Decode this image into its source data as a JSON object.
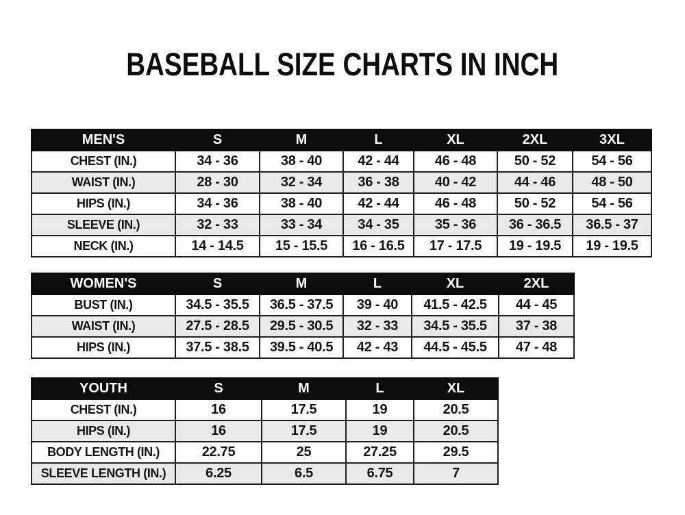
{
  "title": "BASEBALL SIZE CHARTS IN INCH",
  "colors": {
    "page_bg": "#fefefe",
    "header_bg": "#0c0c0c",
    "header_text": "#ffffff",
    "border": "#1f1f1f",
    "stripe": "#e9e9e9",
    "text": "#141414"
  },
  "chart_data": [
    {
      "type": "table",
      "name": "mens",
      "header": [
        "MEN'S",
        "S",
        "M",
        "L",
        "XL",
        "2XL",
        "3XL"
      ],
      "rows": [
        [
          "CHEST (IN.)",
          "34 - 36",
          "38 - 40",
          "42 - 44",
          "46 - 48",
          "50 - 52",
          "54 - 56"
        ],
        [
          "WAIST (IN.)",
          "28 - 30",
          "32 - 34",
          "36 - 38",
          "40 - 42",
          "44 - 46",
          "48 - 50"
        ],
        [
          "HIPS (IN.)",
          "34 - 36",
          "38 - 40",
          "42 - 44",
          "46 - 48",
          "50 - 52",
          "54 - 56"
        ],
        [
          "SLEEVE (IN.)",
          "32 - 33",
          "33 - 34",
          "34 - 35",
          "35 - 36",
          "36 - 36.5",
          "36.5 - 37"
        ],
        [
          "NECK (IN.)",
          "14 - 14.5",
          "15 - 15.5",
          "16 - 16.5",
          "17 - 17.5",
          "19 - 19.5",
          "19 - 19.5"
        ]
      ]
    },
    {
      "type": "table",
      "name": "womens",
      "header": [
        "WOMEN'S",
        "S",
        "M",
        "L",
        "XL",
        "2XL"
      ],
      "rows": [
        [
          "BUST (IN.)",
          "34.5 - 35.5",
          "36.5 - 37.5",
          "39 - 40",
          "41.5 - 42.5",
          "44 - 45"
        ],
        [
          "WAIST (IN.)",
          "27.5 - 28.5",
          "29.5 - 30.5",
          "32 - 33",
          "34.5 - 35.5",
          "37 - 38"
        ],
        [
          "HIPS (IN.)",
          "37.5 - 38.5",
          "39.5 - 40.5",
          "42 - 43",
          "44.5 - 45.5",
          "47 - 48"
        ]
      ]
    },
    {
      "type": "table",
      "name": "youth",
      "header": [
        "YOUTH",
        "S",
        "M",
        "L",
        "XL"
      ],
      "rows": [
        [
          "CHEST (IN.)",
          "16",
          "17.5",
          "19",
          "20.5"
        ],
        [
          "HIPS (IN.)",
          "16",
          "17.5",
          "19",
          "20.5"
        ],
        [
          "BODY LENGTH (IN.)",
          "22.75",
          "25",
          "27.25",
          "29.5"
        ],
        [
          "SLEEVE LENGTH (IN.)",
          "6.25",
          "6.5",
          "6.75",
          "7"
        ]
      ]
    }
  ]
}
